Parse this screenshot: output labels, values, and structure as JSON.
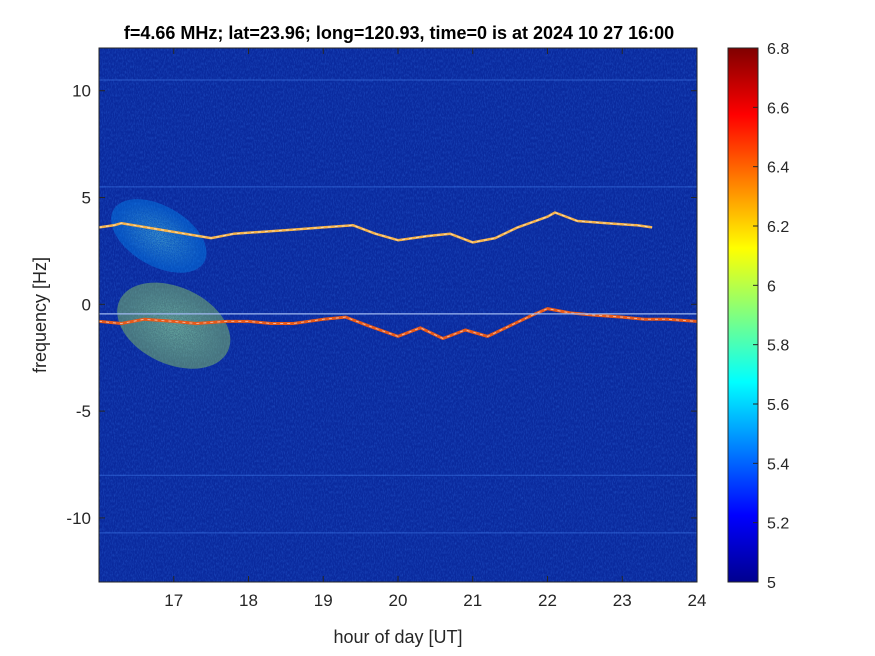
{
  "chart_data": {
    "type": "heatmap",
    "title": "f=4.66 MHz;  lat=23.96; long=120.93, time=0 is at 2024 10 27 16:00",
    "xlabel": "hour of day [UT]",
    "ylabel": "frequency [Hz]",
    "xlim": [
      16,
      24
    ],
    "ylim": [
      -13,
      12
    ],
    "xticks": [
      17,
      18,
      19,
      20,
      21,
      22,
      23,
      24
    ],
    "xtick_labels": [
      "17",
      "18",
      "19",
      "20",
      "21",
      "22",
      "23",
      "24"
    ],
    "yticks": [
      10,
      5,
      0,
      -5,
      -10
    ],
    "ytick_labels": [
      "10",
      "5",
      "0",
      "-5",
      "-10"
    ],
    "colorbar": {
      "colormap": "jet",
      "range": [
        5,
        6.8
      ],
      "ticks": [
        6.8,
        6.6,
        6.4,
        6.2,
        6,
        5.8,
        5.6,
        5.4,
        5.2,
        5
      ],
      "tick_labels": [
        "6.8",
        "6.6",
        "6.4",
        "6.2",
        "6",
        "5.8",
        "5.6",
        "5.4",
        "5.2",
        "5"
      ]
    },
    "background_color": "#0a2a9e",
    "series": [
      {
        "x": [
          16.0,
          16.3,
          16.6,
          17.0,
          17.3,
          17.7,
          18.0,
          18.3,
          18.6,
          19.0,
          19.3,
          19.6,
          20.0,
          20.3,
          20.6,
          20.9,
          21.2,
          21.5,
          21.8,
          22.0,
          22.3,
          22.6,
          23.0,
          23.3,
          23.6,
          24.0
        ],
        "y": [
          -0.8,
          -0.9,
          -0.7,
          -0.8,
          -0.9,
          -0.8,
          -0.8,
          -0.9,
          -0.9,
          -0.7,
          -0.6,
          -1.0,
          -1.5,
          -1.1,
          -1.6,
          -1.2,
          -1.5,
          -1.0,
          -0.5,
          -0.2,
          -0.4,
          -0.5,
          -0.6,
          -0.7,
          -0.7,
          -0.8
        ]
      },
      {
        "x": [
          16.0,
          16.2,
          16.3,
          17.5,
          17.8,
          18.2,
          18.6,
          19.0,
          19.4,
          19.7,
          20.0,
          20.4,
          20.7,
          21.0,
          21.3,
          21.6,
          22.0,
          22.1,
          22.4,
          22.8,
          23.2,
          23.4
        ],
        "y": [
          3.6,
          3.7,
          3.8,
          3.1,
          3.3,
          3.4,
          3.5,
          3.6,
          3.7,
          3.3,
          3.0,
          3.2,
          3.3,
          2.9,
          3.1,
          3.6,
          4.1,
          4.3,
          3.9,
          3.8,
          3.7,
          3.6
        ]
      },
      {
        "x": [
          16.0,
          24.0
        ],
        "y": [
          -0.45,
          -0.45
        ]
      }
    ],
    "blobs": [
      {
        "x_center": 17.0,
        "y_center": -1.0,
        "x_halfwidth": 0.8,
        "y_halfwidth": 1.8,
        "tilt": -25,
        "peak": 6.0
      },
      {
        "x_center": 16.8,
        "y_center": 3.2,
        "x_halfwidth": 0.7,
        "y_halfwidth": 1.4,
        "tilt": -30,
        "peak": 5.5
      }
    ],
    "horizontal_lines_y": [
      5.5,
      -8.0,
      -10.7,
      10.5
    ]
  }
}
